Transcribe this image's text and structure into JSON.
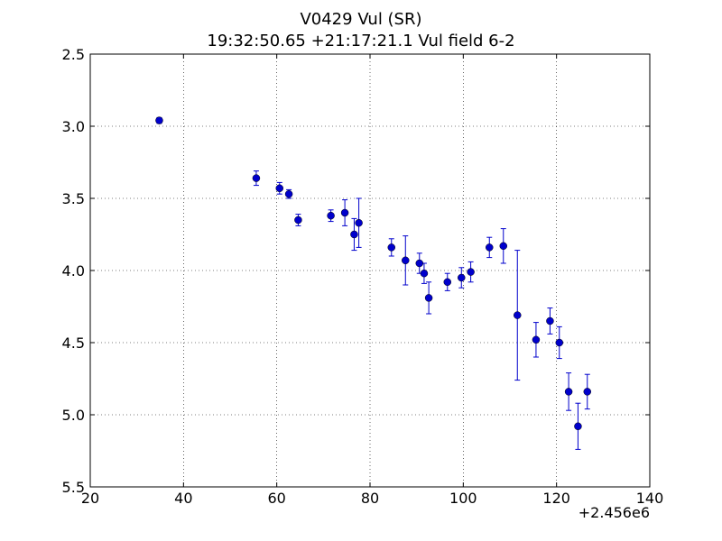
{
  "chart_data": {
    "type": "scatter",
    "title": "V0429 Vul (SR)",
    "subtitle": "19:32:50.65 +21:17:21.1 Vul field 6-2",
    "x_offset_label": "+2.456e6",
    "xlim": [
      20,
      140
    ],
    "ylim": [
      2.5,
      5.5
    ],
    "y_inverted": true,
    "grid": true,
    "x_ticks": [
      "20",
      "40",
      "60",
      "80",
      "100",
      "120",
      "140"
    ],
    "y_ticks": [
      "2.5",
      "3.0",
      "3.5",
      "4.0",
      "4.5",
      "5.0",
      "5.5"
    ],
    "marker_color": "#0000cc",
    "points": [
      {
        "x": 34.8,
        "y": 2.96,
        "err": 0.02
      },
      {
        "x": 55.6,
        "y": 3.36,
        "err": 0.05
      },
      {
        "x": 60.6,
        "y": 3.43,
        "err": 0.04
      },
      {
        "x": 62.6,
        "y": 3.47,
        "err": 0.03
      },
      {
        "x": 64.6,
        "y": 3.65,
        "err": 0.04
      },
      {
        "x": 71.6,
        "y": 3.62,
        "err": 0.04
      },
      {
        "x": 74.6,
        "y": 3.6,
        "err": 0.09
      },
      {
        "x": 76.6,
        "y": 3.75,
        "err": 0.11
      },
      {
        "x": 77.6,
        "y": 3.67,
        "err": 0.17
      },
      {
        "x": 84.6,
        "y": 3.84,
        "err": 0.06
      },
      {
        "x": 87.6,
        "y": 3.93,
        "err": 0.17
      },
      {
        "x": 90.6,
        "y": 3.95,
        "err": 0.07
      },
      {
        "x": 91.6,
        "y": 4.02,
        "err": 0.07
      },
      {
        "x": 92.6,
        "y": 4.19,
        "err": 0.11
      },
      {
        "x": 96.6,
        "y": 4.08,
        "err": 0.06
      },
      {
        "x": 99.6,
        "y": 4.05,
        "err": 0.07
      },
      {
        "x": 101.6,
        "y": 4.01,
        "err": 0.07
      },
      {
        "x": 105.6,
        "y": 3.84,
        "err": 0.07
      },
      {
        "x": 108.6,
        "y": 3.83,
        "err": 0.12
      },
      {
        "x": 111.6,
        "y": 4.31,
        "err": 0.45
      },
      {
        "x": 115.6,
        "y": 4.48,
        "err": 0.12
      },
      {
        "x": 118.6,
        "y": 4.35,
        "err": 0.09
      },
      {
        "x": 120.6,
        "y": 4.5,
        "err": 0.11
      },
      {
        "x": 122.6,
        "y": 4.84,
        "err": 0.13
      },
      {
        "x": 124.6,
        "y": 5.08,
        "err": 0.16
      },
      {
        "x": 126.6,
        "y": 4.84,
        "err": 0.12
      }
    ]
  }
}
